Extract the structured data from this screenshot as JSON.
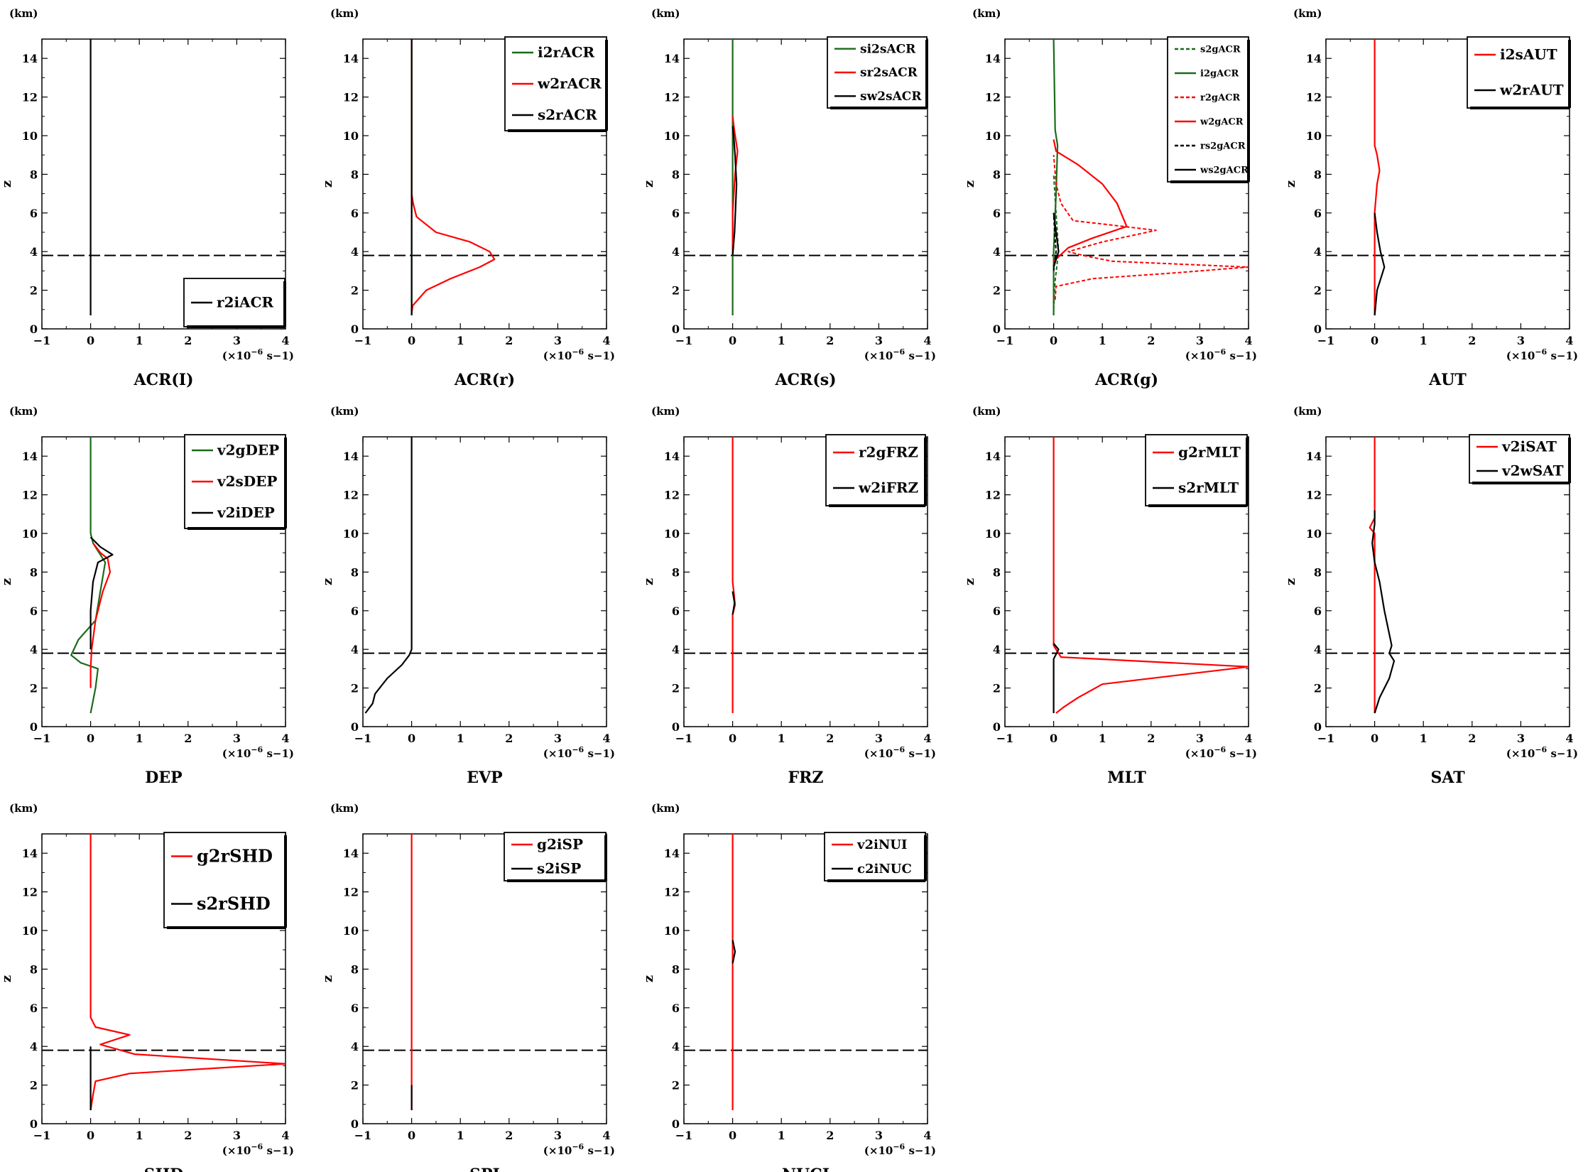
{
  "figure": {
    "y_axis_label": "z",
    "y_unit": "(km)",
    "x_unit_prefix": "(×10",
    "x_unit_exp": "−6",
    "x_unit_suffix": " s−1)"
  },
  "colors": {
    "red": "#ff0000",
    "green": "#1a6b1a",
    "black": "#000000",
    "dash_line": "#000000"
  },
  "chart_data": [
    {
      "type": "line",
      "title": "ACR(I)",
      "xlim": [
        -1,
        4
      ],
      "ylim": [
        0,
        15
      ],
      "xticks": [
        -1,
        0,
        1,
        2,
        3,
        4
      ],
      "yticks": [
        0,
        2,
        4,
        6,
        8,
        10,
        12,
        14
      ],
      "melting_level": 3.8,
      "legend": "bottom-right",
      "series": [
        {
          "name": "r2iACR",
          "color": "black",
          "dash": false,
          "x": [
            0,
            0
          ],
          "y": [
            0.7,
            15
          ]
        }
      ]
    },
    {
      "type": "line",
      "title": "ACR(r)",
      "xlim": [
        -1,
        4
      ],
      "ylim": [
        0,
        15
      ],
      "xticks": [
        -1,
        0,
        1,
        2,
        3,
        4
      ],
      "yticks": [
        0,
        2,
        4,
        6,
        8,
        10,
        12,
        14
      ],
      "melting_level": 3.8,
      "legend": "top-right",
      "series": [
        {
          "name": "i2rACR",
          "color": "green",
          "dash": false,
          "x": [
            0,
            0
          ],
          "y": [
            0.7,
            15
          ]
        },
        {
          "name": "w2rACR",
          "color": "red",
          "dash": false,
          "x": [
            0,
            0.02,
            0.3,
            0.8,
            1.4,
            1.7,
            1.6,
            1.2,
            0.5,
            0.1,
            0.03,
            0,
            0
          ],
          "y": [
            0.8,
            1.2,
            2.0,
            2.6,
            3.2,
            3.6,
            4.0,
            4.5,
            5.0,
            5.8,
            6.5,
            7.0,
            15
          ]
        },
        {
          "name": "s2rACR",
          "color": "black",
          "dash": false,
          "x": [
            0,
            0
          ],
          "y": [
            0.7,
            15
          ]
        }
      ]
    },
    {
      "type": "line",
      "title": "ACR(s)",
      "xlim": [
        -1,
        4
      ],
      "ylim": [
        0,
        15
      ],
      "xticks": [
        -1,
        0,
        1,
        2,
        3,
        4
      ],
      "yticks": [
        0,
        2,
        4,
        6,
        8,
        10,
        12,
        14
      ],
      "melting_level": 3.8,
      "legend": "top-right",
      "series": [
        {
          "name": "si2sACR",
          "color": "green",
          "dash": false,
          "x": [
            0,
            0
          ],
          "y": [
            0.7,
            15
          ]
        },
        {
          "name": "sr2sACR",
          "color": "red",
          "dash": false,
          "x": [
            0,
            0,
            0.05,
            0.1,
            0.04,
            0
          ],
          "y": [
            4.0,
            6.0,
            8.0,
            9.2,
            10.2,
            11.0
          ]
        },
        {
          "name": "sw2sACR",
          "color": "black",
          "dash": false,
          "x": [
            0,
            0.04,
            0.08,
            0.05,
            0.02,
            0
          ],
          "y": [
            3.8,
            5.0,
            7.5,
            9.0,
            10.0,
            10.5
          ]
        }
      ]
    },
    {
      "type": "line",
      "title": "ACR(g)",
      "xlim": [
        -1,
        4
      ],
      "ylim": [
        0,
        15
      ],
      "xticks": [
        -1,
        0,
        1,
        2,
        3,
        4
      ],
      "yticks": [
        0,
        2,
        4,
        6,
        8,
        10,
        12,
        14
      ],
      "melting_level": 3.8,
      "legend": "top-right",
      "series": [
        {
          "name": "s2gACR",
          "color": "green",
          "dash": true,
          "x": [
            0,
            0.03,
            0.1,
            0.05,
            0
          ],
          "y": [
            1.0,
            2.5,
            4.0,
            6.0,
            8.0
          ]
        },
        {
          "name": "i2gACR",
          "color": "green",
          "dash": false,
          "x": [
            0,
            0,
            0.05,
            0.08,
            0.03,
            0
          ],
          "y": [
            0.7,
            4.0,
            7.0,
            9.5,
            10.3,
            15
          ]
        },
        {
          "name": "r2gACR",
          "color": "red",
          "dash": true,
          "x": [
            0.03,
            0.05,
            0.8,
            2.5,
            4.0,
            1.2,
            0.6,
            0.3,
            1.0,
            2.1,
            1.1,
            0.4,
            0.15,
            0.05,
            0
          ],
          "y": [
            1.5,
            2.2,
            2.6,
            2.9,
            3.2,
            3.5,
            3.8,
            4.0,
            4.5,
            5.1,
            5.4,
            5.6,
            6.5,
            7.5,
            9.0
          ]
        },
        {
          "name": "w2gACR",
          "color": "red",
          "dash": false,
          "x": [
            0,
            0.3,
            0.8,
            1.5,
            1.3,
            1.0,
            0.5,
            0.05,
            0
          ],
          "y": [
            3.5,
            4.2,
            4.7,
            5.3,
            6.5,
            7.5,
            8.5,
            9.2,
            9.8
          ]
        },
        {
          "name": "rs2gACR",
          "color": "black",
          "dash": true,
          "x": [
            0,
            0.05,
            0.02,
            0
          ],
          "y": [
            3.0,
            4.0,
            5.0,
            6.0
          ]
        },
        {
          "name": "ws2gACR",
          "color": "black",
          "dash": false,
          "x": [
            0,
            0.1,
            0.05,
            0
          ],
          "y": [
            3.2,
            4.0,
            5.0,
            6.0
          ]
        }
      ]
    },
    {
      "type": "line",
      "title": "AUT",
      "xlim": [
        -1,
        4
      ],
      "ylim": [
        0,
        15
      ],
      "xticks": [
        -1,
        0,
        1,
        2,
        3,
        4
      ],
      "yticks": [
        0,
        2,
        4,
        6,
        8,
        10,
        12,
        14
      ],
      "melting_level": 3.8,
      "legend": "top-right",
      "series": [
        {
          "name": "i2sAUT",
          "color": "red",
          "dash": false,
          "x": [
            0,
            0,
            0.05,
            0.1,
            0.05,
            0,
            0
          ],
          "y": [
            0.7,
            6.0,
            7.5,
            8.2,
            9.0,
            9.5,
            15
          ]
        },
        {
          "name": "w2rAUT",
          "color": "black",
          "dash": false,
          "x": [
            0,
            0.05,
            0.15,
            0.2,
            0.12,
            0.05,
            0
          ],
          "y": [
            0.7,
            2.0,
            2.8,
            3.2,
            4.0,
            5.0,
            6.0
          ]
        }
      ]
    },
    {
      "type": "line",
      "title": "DEP",
      "xlim": [
        -1,
        4
      ],
      "ylim": [
        0,
        15
      ],
      "xticks": [
        -1,
        0,
        1,
        2,
        3,
        4
      ],
      "yticks": [
        0,
        2,
        4,
        6,
        8,
        10,
        12,
        14
      ],
      "melting_level": 3.8,
      "legend": "top-right",
      "series": [
        {
          "name": "v2gDEP",
          "color": "green",
          "dash": false,
          "x": [
            0,
            0.1,
            0.15,
            -0.2,
            -0.4,
            -0.25,
            0.1,
            0.2,
            0.3,
            0.05,
            0,
            0
          ],
          "y": [
            0.7,
            2.0,
            3.0,
            3.3,
            3.7,
            4.5,
            5.5,
            7.0,
            8.5,
            9.5,
            10.0,
            15
          ]
        },
        {
          "name": "v2sDEP",
          "color": "red",
          "dash": false,
          "x": [
            0,
            0,
            0.02,
            0.1,
            0.25,
            0.4,
            0.35,
            0.2,
            0.05
          ],
          "y": [
            2.0,
            3.0,
            4.0,
            5.5,
            7.0,
            8.0,
            8.7,
            9.0,
            9.5
          ]
        },
        {
          "name": "v2iDEP",
          "color": "black",
          "dash": false,
          "x": [
            0,
            0,
            0.05,
            0.15,
            0.45,
            0.2,
            0
          ],
          "y": [
            4.0,
            6.0,
            7.5,
            8.5,
            8.9,
            9.3,
            9.8
          ]
        }
      ]
    },
    {
      "type": "line",
      "title": "EVP",
      "xlim": [
        -1,
        4
      ],
      "ylim": [
        0,
        15
      ],
      "xticks": [
        -1,
        0,
        1,
        2,
        3,
        4
      ],
      "yticks": [
        0,
        2,
        4,
        6,
        8,
        10,
        12,
        14
      ],
      "melting_level": 3.8,
      "legend": "none",
      "series": [
        {
          "name": "",
          "color": "black",
          "dash": false,
          "x": [
            -0.95,
            -0.8,
            -0.75,
            -0.5,
            -0.2,
            -0.05,
            0,
            0
          ],
          "y": [
            0.7,
            1.2,
            1.7,
            2.5,
            3.2,
            3.7,
            4.0,
            15
          ]
        }
      ]
    },
    {
      "type": "line",
      "title": "FRZ",
      "xlim": [
        -1,
        4
      ],
      "ylim": [
        0,
        15
      ],
      "xticks": [
        -1,
        0,
        1,
        2,
        3,
        4
      ],
      "yticks": [
        0,
        2,
        4,
        6,
        8,
        10,
        12,
        14
      ],
      "melting_level": 3.8,
      "legend": "top-right",
      "series": [
        {
          "name": "r2gFRZ",
          "color": "red",
          "dash": false,
          "x": [
            0,
            0,
            0.05,
            0.03,
            0,
            0
          ],
          "y": [
            0.7,
            5.8,
            6.3,
            6.8,
            7.5,
            15
          ]
        },
        {
          "name": "w2iFRZ",
          "color": "black",
          "dash": false,
          "x": [
            0,
            0.04,
            0
          ],
          "y": [
            5.8,
            6.4,
            7.0
          ]
        }
      ]
    },
    {
      "type": "line",
      "title": "MLT",
      "xlim": [
        -1,
        4
      ],
      "ylim": [
        0,
        15
      ],
      "xticks": [
        -1,
        0,
        1,
        2,
        3,
        4
      ],
      "yticks": [
        0,
        2,
        4,
        6,
        8,
        10,
        12,
        14
      ],
      "melting_level": 3.8,
      "legend": "top-right",
      "series": [
        {
          "name": "g2rMLT",
          "color": "red",
          "dash": false,
          "x": [
            0.05,
            0.2,
            0.5,
            1.0,
            4.0,
            0.15,
            0.05,
            0,
            0
          ],
          "y": [
            0.7,
            1.0,
            1.5,
            2.2,
            3.1,
            3.6,
            4.0,
            4.2,
            15
          ]
        },
        {
          "name": "s2rMLT",
          "color": "black",
          "dash": false,
          "x": [
            0,
            0,
            0.1,
            0
          ],
          "y": [
            0.7,
            3.5,
            4.0,
            4.3
          ]
        }
      ]
    },
    {
      "type": "line",
      "title": "SAT",
      "xlim": [
        -1,
        4
      ],
      "ylim": [
        0,
        15
      ],
      "xticks": [
        -1,
        0,
        1,
        2,
        3,
        4
      ],
      "yticks": [
        0,
        2,
        4,
        6,
        8,
        10,
        12,
        14
      ],
      "melting_level": 3.8,
      "legend": "top-right",
      "series": [
        {
          "name": "v2iSAT",
          "color": "red",
          "dash": false,
          "x": [
            0,
            0,
            0,
            -0.1,
            0,
            0
          ],
          "y": [
            0.7,
            9.0,
            10.0,
            10.3,
            10.8,
            15
          ]
        },
        {
          "name": "v2wSAT",
          "color": "black",
          "dash": false,
          "x": [
            0,
            0.1,
            0.3,
            0.4,
            0.3,
            0.35,
            0.2,
            0.1,
            0,
            -0.05,
            0,
            0
          ],
          "y": [
            0.7,
            1.5,
            2.5,
            3.4,
            3.8,
            4.2,
            6.0,
            7.5,
            8.5,
            9.5,
            10.5,
            11.2
          ]
        }
      ]
    },
    {
      "type": "line",
      "title": "SHD",
      "xlim": [
        -1,
        4
      ],
      "ylim": [
        0,
        15
      ],
      "xticks": [
        -1,
        0,
        1,
        2,
        3,
        4
      ],
      "yticks": [
        0,
        2,
        4,
        6,
        8,
        10,
        12,
        14
      ],
      "melting_level": 3.8,
      "legend": "top-right",
      "series": [
        {
          "name": "g2rSHD",
          "color": "red",
          "dash": false,
          "x": [
            0,
            0.05,
            0.1,
            0.8,
            4.0,
            0.9,
            0.2,
            0.8,
            0.1,
            0,
            0
          ],
          "y": [
            0.7,
            1.5,
            2.2,
            2.6,
            3.1,
            3.6,
            4.1,
            4.6,
            5.0,
            5.5,
            15
          ]
        },
        {
          "name": "s2rSHD",
          "color": "black",
          "dash": false,
          "x": [
            0,
            0
          ],
          "y": [
            0.7,
            4.0
          ]
        }
      ]
    },
    {
      "type": "line",
      "title": "SPI",
      "xlim": [
        -1,
        4
      ],
      "ylim": [
        0,
        15
      ],
      "xticks": [
        -1,
        0,
        1,
        2,
        3,
        4
      ],
      "yticks": [
        0,
        2,
        4,
        6,
        8,
        10,
        12,
        14
      ],
      "melting_level": 3.8,
      "legend": "top-right",
      "series": [
        {
          "name": "g2iSP",
          "color": "red",
          "dash": false,
          "x": [
            0,
            0
          ],
          "y": [
            0.7,
            15
          ]
        },
        {
          "name": "s2iSP",
          "color": "black",
          "dash": false,
          "x": [
            0,
            0
          ],
          "y": [
            0.7,
            2.0
          ]
        }
      ]
    },
    {
      "type": "line",
      "title": "NUCI",
      "xlim": [
        -1,
        4
      ],
      "ylim": [
        0,
        15
      ],
      "xticks": [
        -1,
        0,
        1,
        2,
        3,
        4
      ],
      "yticks": [
        0,
        2,
        4,
        6,
        8,
        10,
        12,
        14
      ],
      "melting_level": 3.8,
      "legend": "top-right",
      "series": [
        {
          "name": "v2iNUI",
          "color": "red",
          "dash": false,
          "x": [
            0,
            0
          ],
          "y": [
            0.7,
            15
          ]
        },
        {
          "name": "c2iNUC",
          "color": "black",
          "dash": false,
          "x": [
            0,
            0.05,
            0
          ],
          "y": [
            8.3,
            8.9,
            9.5
          ]
        }
      ]
    }
  ]
}
